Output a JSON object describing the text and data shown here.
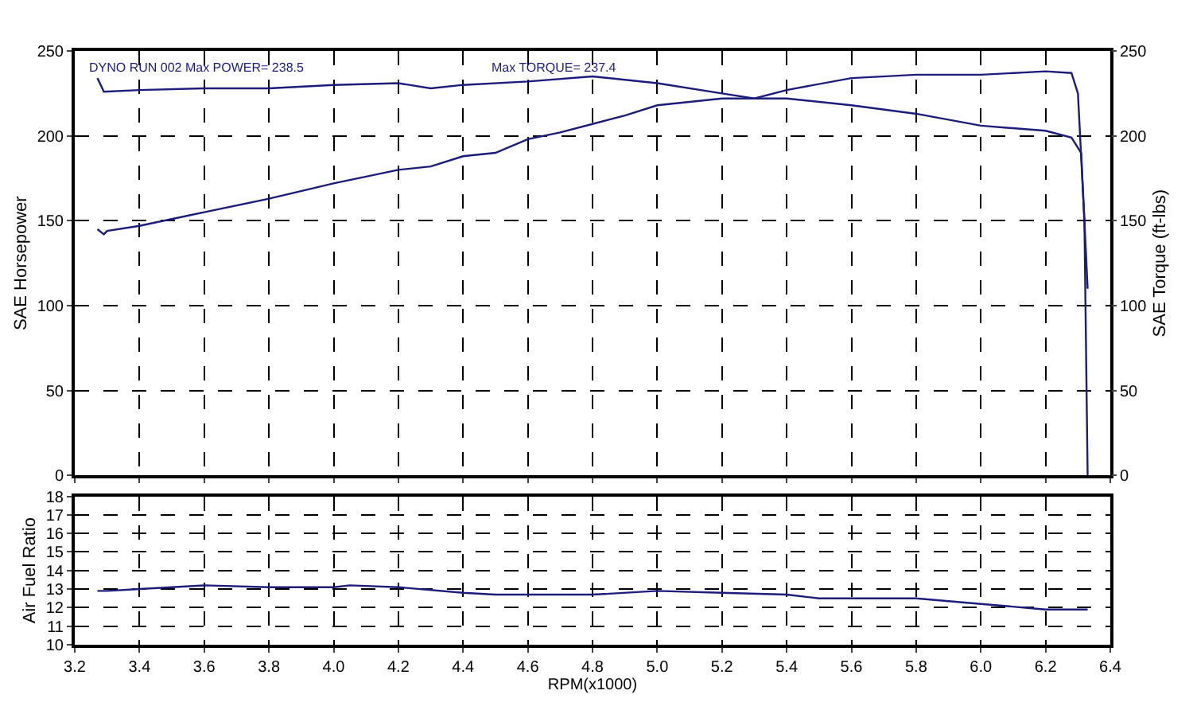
{
  "chart_data": [
    {
      "type": "line",
      "ylabel": "SAE Horsepower",
      "y2label": "SAE Torque (ft-lbs)",
      "xlim": [
        3.2,
        6.4
      ],
      "xticks": [
        3.2,
        3.4,
        3.6,
        3.8,
        4.0,
        4.2,
        4.4,
        4.6,
        4.8,
        5.0,
        5.2,
        5.4,
        5.6,
        5.8,
        6.0,
        6.2,
        6.4
      ],
      "ylim": [
        0,
        250
      ],
      "yticks": [
        0,
        50,
        100,
        150,
        200,
        250
      ],
      "y2lim": [
        0,
        250
      ],
      "y2ticks": [
        0,
        50,
        100,
        150,
        200,
        250
      ],
      "grid": true,
      "tick_labels": "y",
      "line_style": "solid",
      "marker": "none",
      "annotations": [
        "DYNO RUN 002 Max POWER= 238.5",
        "Max TORQUE= 237.4"
      ],
      "series": [
        {
          "color": "#1c1c7a",
          "x": [
            3.27,
            3.29,
            3.3,
            3.4,
            3.6,
            3.8,
            4.0,
            4.2,
            4.3,
            4.4,
            4.5,
            4.6,
            4.7,
            4.8,
            4.9,
            5.0,
            5.2,
            5.4,
            5.6,
            5.8,
            6.0,
            6.2,
            6.28,
            6.31,
            6.32,
            6.33
          ],
          "values": [
            145,
            142,
            144,
            147,
            155,
            163,
            172,
            180,
            182,
            188,
            190,
            198,
            202,
            207,
            212,
            218,
            222,
            222,
            218,
            213,
            206,
            203,
            199,
            190,
            150,
            110
          ]
        },
        {
          "color": "#1c1c7a",
          "axis": "y2",
          "x": [
            3.27,
            3.29,
            3.4,
            3.6,
            3.8,
            4.0,
            4.2,
            4.3,
            4.4,
            4.6,
            4.8,
            5.0,
            5.2,
            5.3,
            5.4,
            5.6,
            5.8,
            6.0,
            6.2,
            6.28,
            6.3,
            6.32,
            6.33
          ],
          "values": [
            234,
            226,
            227,
            228,
            228,
            230,
            231,
            228,
            230,
            232,
            235,
            231,
            225,
            222,
            227,
            234,
            236,
            236,
            238,
            237,
            225,
            150,
            0
          ]
        }
      ]
    },
    {
      "type": "line",
      "xlabel": "RPM(x1000)",
      "ylabel": "Air Fuel Ratio",
      "xlim": [
        3.2,
        6.4
      ],
      "xticks": [
        3.2,
        3.4,
        3.6,
        3.8,
        {
          "value": 4,
          "label": "4.0"
        },
        4.2,
        4.4,
        4.6,
        4.8,
        {
          "value": 5,
          "label": "5.0"
        },
        5.2,
        5.4,
        5.6,
        5.8,
        {
          "value": 6,
          "label": "6.0"
        },
        6.2,
        6.4
      ],
      "ylim": [
        10,
        18
      ],
      "yticks": [
        10,
        11,
        12,
        13,
        14,
        15,
        16,
        17,
        18
      ],
      "grid": true,
      "line_style": "solid",
      "marker": "none",
      "series": [
        {
          "color": "#1c1c7a",
          "x": [
            3.27,
            3.3,
            3.4,
            3.6,
            3.8,
            4.0,
            4.05,
            4.2,
            4.4,
            4.5,
            4.8,
            5.0,
            5.2,
            5.4,
            5.5,
            5.8,
            6.0,
            6.2,
            6.33
          ],
          "values": [
            12.9,
            12.9,
            13.0,
            13.2,
            13.1,
            13.1,
            13.2,
            13.1,
            12.8,
            12.7,
            12.7,
            12.9,
            12.8,
            12.7,
            12.5,
            12.5,
            12.2,
            11.9,
            11.9
          ]
        }
      ]
    }
  ]
}
